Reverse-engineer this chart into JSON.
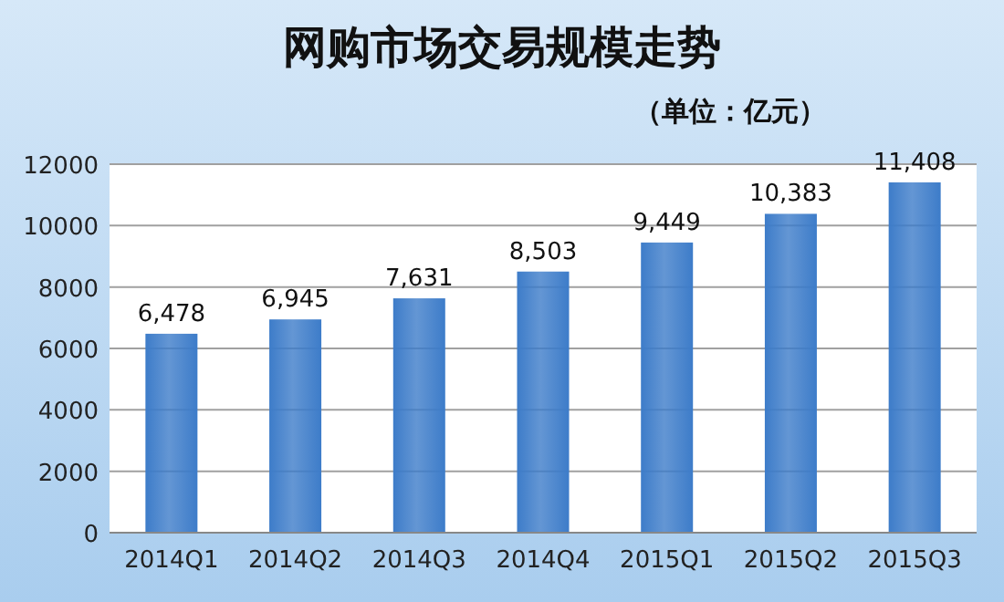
{
  "chart_data": {
    "type": "bar",
    "title": "网购市场交易规模走势",
    "subtitle": "（单位：亿元）",
    "categories": [
      "2014Q1",
      "2014Q2",
      "2014Q3",
      "2014Q4",
      "2015Q1",
      "2015Q2",
      "2015Q3"
    ],
    "values": [
      6478,
      6945,
      7631,
      8503,
      9449,
      10383,
      11408
    ],
    "value_labels": [
      "6,478",
      "6,945",
      "7,631",
      "8,503",
      "9,449",
      "10,383",
      "11,408"
    ],
    "color": "#3d7cc9",
    "ylim": [
      0,
      12000
    ],
    "yticks": [
      0,
      2000,
      4000,
      6000,
      8000,
      10000,
      12000
    ],
    "grid": "y"
  }
}
